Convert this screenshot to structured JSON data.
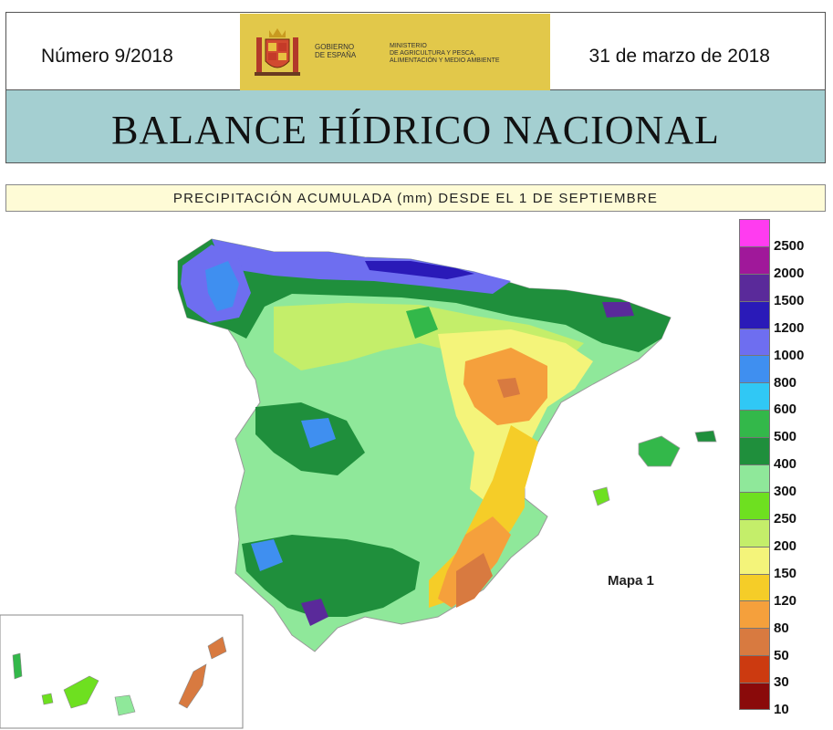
{
  "header": {
    "issue_number": "Número 9/2018",
    "date": "31 de marzo de 2018",
    "gov_line1": "GOBIERNO",
    "gov_line2": "DE ESPAÑA",
    "ministry_line1": "MINISTERIO",
    "ministry_line2": "DE AGRICULTURA Y PESCA,",
    "ministry_line3": "ALIMENTACIÓN Y MEDIO AMBIENTE"
  },
  "title": "BALANCE HÍDRICO NACIONAL",
  "subtitle": "PRECIPITACIÓN ACUMULADA (mm) DESDE EL 1 DE SEPTIEMBRE",
  "map_label": "Mapa 1",
  "legend": [
    {
      "label": "2500",
      "color": "#ff3cf0"
    },
    {
      "label": "2000",
      "color": "#a0189a"
    },
    {
      "label": "1500",
      "color": "#5a2a9a"
    },
    {
      "label": "1200",
      "color": "#2a1ab8"
    },
    {
      "label": "1000",
      "color": "#6e6ef0"
    },
    {
      "label": "800",
      "color": "#3f8ff0"
    },
    {
      "label": "600",
      "color": "#30c8f5"
    },
    {
      "label": "500",
      "color": "#33b84a"
    },
    {
      "label": "400",
      "color": "#1f8f3c"
    },
    {
      "label": "300",
      "color": "#8fe89a"
    },
    {
      "label": "250",
      "color": "#6ee020"
    },
    {
      "label": "200",
      "color": "#c4ee6a"
    },
    {
      "label": "150",
      "color": "#f4f47a"
    },
    {
      "label": "120",
      "color": "#f5cd28"
    },
    {
      "label": "80",
      "color": "#f5a03c"
    },
    {
      "label": "50",
      "color": "#d87a40"
    },
    {
      "label": "30",
      "color": "#cc3a10"
    },
    {
      "label": "10",
      "color": "#8a0a0a"
    }
  ]
}
